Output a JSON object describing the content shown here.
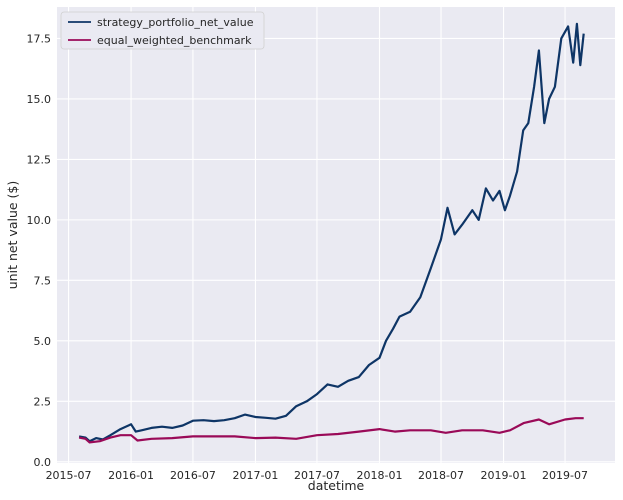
{
  "chart_data": {
    "type": "line",
    "xlabel": "datetime",
    "ylabel": "unit net value ($)",
    "xlim": [
      "2015-05-28",
      "2019-11-25"
    ],
    "ylim": [
      -0.05,
      18.8
    ],
    "grid": true,
    "legend": "top-left",
    "x_ticks": [
      "2015-07",
      "2016-01",
      "2016-07",
      "2017-01",
      "2017-07",
      "2018-01",
      "2018-07",
      "2019-01",
      "2019-07"
    ],
    "y_ticks": [
      "0.0",
      "2.5",
      "5.0",
      "7.5",
      "10.0",
      "12.5",
      "15.0",
      "17.5"
    ],
    "series": [
      {
        "name": "strategy_portfolio_net_value",
        "color": "#0e3566",
        "points": [
          [
            "2015-08-01",
            1.05
          ],
          [
            "2015-08-20",
            1.0
          ],
          [
            "2015-09-01",
            0.85
          ],
          [
            "2015-09-20",
            0.98
          ],
          [
            "2015-10-10",
            0.92
          ],
          [
            "2015-11-01",
            1.1
          ],
          [
            "2015-12-01",
            1.35
          ],
          [
            "2016-01-01",
            1.55
          ],
          [
            "2016-01-15",
            1.25
          ],
          [
            "2016-02-01",
            1.3
          ],
          [
            "2016-03-01",
            1.4
          ],
          [
            "2016-04-01",
            1.45
          ],
          [
            "2016-05-01",
            1.4
          ],
          [
            "2016-06-01",
            1.5
          ],
          [
            "2016-07-01",
            1.7
          ],
          [
            "2016-08-01",
            1.72
          ],
          [
            "2016-09-01",
            1.68
          ],
          [
            "2016-10-01",
            1.72
          ],
          [
            "2016-11-01",
            1.8
          ],
          [
            "2016-12-01",
            1.95
          ],
          [
            "2017-01-01",
            1.85
          ],
          [
            "2017-02-01",
            1.82
          ],
          [
            "2017-03-01",
            1.78
          ],
          [
            "2017-04-01",
            1.9
          ],
          [
            "2017-05-01",
            2.3
          ],
          [
            "2017-06-01",
            2.5
          ],
          [
            "2017-07-01",
            2.8
          ],
          [
            "2017-08-01",
            3.2
          ],
          [
            "2017-09-01",
            3.1
          ],
          [
            "2017-10-01",
            3.35
          ],
          [
            "2017-11-01",
            3.5
          ],
          [
            "2017-12-01",
            4.0
          ],
          [
            "2018-01-01",
            4.3
          ],
          [
            "2018-01-20",
            5.0
          ],
          [
            "2018-02-10",
            5.5
          ],
          [
            "2018-03-01",
            6.0
          ],
          [
            "2018-04-01",
            6.2
          ],
          [
            "2018-05-01",
            6.8
          ],
          [
            "2018-06-01",
            8.0
          ],
          [
            "2018-07-01",
            9.2
          ],
          [
            "2018-07-20",
            10.5
          ],
          [
            "2018-08-10",
            9.4
          ],
          [
            "2018-09-01",
            9.8
          ],
          [
            "2018-10-01",
            10.4
          ],
          [
            "2018-10-20",
            10.0
          ],
          [
            "2018-11-10",
            11.3
          ],
          [
            "2018-12-01",
            10.8
          ],
          [
            "2018-12-20",
            11.2
          ],
          [
            "2019-01-05",
            10.4
          ],
          [
            "2019-01-20",
            11.0
          ],
          [
            "2019-02-10",
            12.0
          ],
          [
            "2019-02-28",
            13.7
          ],
          [
            "2019-03-15",
            14.0
          ],
          [
            "2019-04-01",
            15.5
          ],
          [
            "2019-04-15",
            17.0
          ],
          [
            "2019-05-01",
            14.0
          ],
          [
            "2019-05-15",
            15.0
          ],
          [
            "2019-06-01",
            15.5
          ],
          [
            "2019-06-20",
            17.5
          ],
          [
            "2019-07-10",
            18.0
          ],
          [
            "2019-07-25",
            16.5
          ],
          [
            "2019-08-05",
            18.1
          ],
          [
            "2019-08-15",
            16.4
          ],
          [
            "2019-08-25",
            17.7
          ]
        ]
      },
      {
        "name": "equal_weighted_benchmark",
        "color": "#9a0a58",
        "points": [
          [
            "2015-08-01",
            1.0
          ],
          [
            "2015-08-20",
            0.95
          ],
          [
            "2015-09-01",
            0.8
          ],
          [
            "2015-10-01",
            0.85
          ],
          [
            "2015-11-01",
            1.0
          ],
          [
            "2015-12-01",
            1.1
          ],
          [
            "2016-01-01",
            1.1
          ],
          [
            "2016-01-20",
            0.88
          ],
          [
            "2016-03-01",
            0.95
          ],
          [
            "2016-05-01",
            0.98
          ],
          [
            "2016-07-01",
            1.05
          ],
          [
            "2016-09-01",
            1.05
          ],
          [
            "2016-11-01",
            1.05
          ],
          [
            "2017-01-01",
            0.98
          ],
          [
            "2017-03-01",
            1.0
          ],
          [
            "2017-05-01",
            0.95
          ],
          [
            "2017-07-01",
            1.1
          ],
          [
            "2017-09-01",
            1.15
          ],
          [
            "2017-11-01",
            1.25
          ],
          [
            "2018-01-01",
            1.35
          ],
          [
            "2018-02-15",
            1.25
          ],
          [
            "2018-04-01",
            1.3
          ],
          [
            "2018-06-01",
            1.3
          ],
          [
            "2018-07-15",
            1.2
          ],
          [
            "2018-09-01",
            1.3
          ],
          [
            "2018-11-01",
            1.3
          ],
          [
            "2018-12-20",
            1.2
          ],
          [
            "2019-01-20",
            1.3
          ],
          [
            "2019-03-01",
            1.6
          ],
          [
            "2019-04-15",
            1.75
          ],
          [
            "2019-05-15",
            1.55
          ],
          [
            "2019-07-01",
            1.75
          ],
          [
            "2019-08-01",
            1.8
          ],
          [
            "2019-08-25",
            1.8
          ]
        ]
      }
    ]
  }
}
